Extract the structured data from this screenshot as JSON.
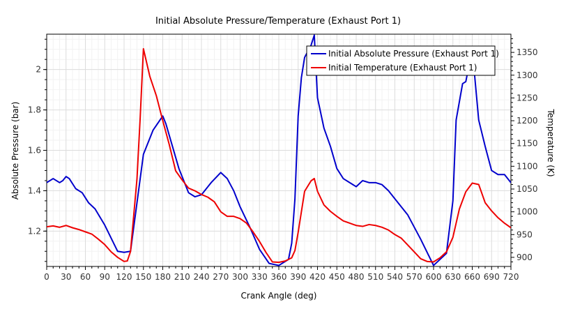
{
  "chart_data": {
    "type": "line",
    "title": "Initial Absolute Pressure/Temperature (Exhaust Port 1)",
    "xlabel": "Crank Angle  (deg)",
    "ylabel_left": "Absolute Pressure  (bar)",
    "ylabel_right": "Temperature  (K)",
    "xlim": [
      0,
      720
    ],
    "ylim_left": [
      1.025,
      2.175
    ],
    "ylim_right": [
      880,
      1390
    ],
    "x_ticks": [
      "0",
      "30",
      "60",
      "90",
      "120",
      "150",
      "180",
      "210",
      "240",
      "270",
      "300",
      "330",
      "360",
      "390",
      "420",
      "450",
      "480",
      "510",
      "540",
      "570",
      "600",
      "630",
      "660",
      "690",
      "720"
    ],
    "x_tick_values": [
      0,
      30,
      60,
      90,
      120,
      150,
      180,
      210,
      240,
      270,
      300,
      330,
      360,
      390,
      420,
      450,
      480,
      510,
      540,
      570,
      600,
      630,
      660,
      690,
      720
    ],
    "y_left_ticks": [
      "1.2",
      "1.4",
      "1.6",
      "1.8",
      "2"
    ],
    "y_left_tick_values": [
      1.2,
      1.4,
      1.6,
      1.8,
      2.0
    ],
    "y_right_ticks": [
      "900",
      "950",
      "1000",
      "1050",
      "1100",
      "1150",
      "1200",
      "1250",
      "1300",
      "1350"
    ],
    "y_right_tick_values": [
      900,
      950,
      1000,
      1050,
      1100,
      1150,
      1200,
      1250,
      1300,
      1350
    ],
    "grid": true,
    "legend_position": "top-right",
    "series": [
      {
        "name": "Initial Absolute Pressure (Exhaust Port 1)",
        "axis": "left",
        "color": "#0000cc",
        "x": [
          0,
          10,
          20,
          25,
          30,
          35,
          45,
          55,
          65,
          75,
          90,
          110,
          120,
          130,
          140,
          150,
          165,
          180,
          185,
          195,
          205,
          210,
          220,
          230,
          240,
          255,
          270,
          280,
          290,
          300,
          315,
          330,
          345,
          360,
          375,
          380,
          385,
          390,
          395,
          400,
          410,
          415,
          420,
          430,
          440,
          450,
          460,
          475,
          480,
          490,
          500,
          510,
          520,
          530,
          540,
          560,
          580,
          600,
          620,
          630,
          635,
          645,
          650,
          660,
          670,
          680,
          690,
          700,
          710,
          720
        ],
        "values": [
          1.44,
          1.46,
          1.44,
          1.45,
          1.47,
          1.46,
          1.41,
          1.39,
          1.34,
          1.31,
          1.23,
          1.1,
          1.095,
          1.1,
          1.34,
          1.58,
          1.7,
          1.77,
          1.73,
          1.62,
          1.51,
          1.47,
          1.39,
          1.37,
          1.38,
          1.44,
          1.49,
          1.46,
          1.4,
          1.32,
          1.22,
          1.11,
          1.04,
          1.03,
          1.06,
          1.14,
          1.36,
          1.77,
          1.96,
          2.06,
          2.12,
          2.17,
          1.86,
          1.71,
          1.62,
          1.51,
          1.46,
          1.43,
          1.42,
          1.45,
          1.44,
          1.44,
          1.43,
          1.4,
          1.36,
          1.28,
          1.16,
          1.03,
          1.09,
          1.35,
          1.75,
          1.93,
          1.94,
          2.1,
          1.75,
          1.62,
          1.5,
          1.48,
          1.48,
          1.44
        ]
      },
      {
        "name": "Initial Temperature (Exhaust Port 1)",
        "axis": "right",
        "color": "#ee0000",
        "x": [
          0,
          10,
          20,
          30,
          40,
          50,
          60,
          70,
          80,
          90,
          100,
          110,
          120,
          125,
          130,
          140,
          145,
          150,
          160,
          170,
          180,
          190,
          200,
          210,
          220,
          230,
          240,
          250,
          260,
          270,
          280,
          290,
          300,
          310,
          320,
          330,
          340,
          350,
          360,
          370,
          380,
          385,
          390,
          400,
          410,
          415,
          420,
          430,
          440,
          450,
          460,
          470,
          480,
          490,
          500,
          510,
          520,
          530,
          540,
          550,
          560,
          570,
          580,
          590,
          600,
          610,
          620,
          630,
          640,
          650,
          660,
          670,
          680,
          690,
          700,
          710,
          720
        ],
        "values": [
          967,
          969,
          966,
          970,
          965,
          961,
          956,
          951,
          940,
          928,
          912,
          900,
          891,
          892,
          913,
          1072,
          1207,
          1358,
          1297,
          1255,
          1200,
          1148,
          1090,
          1070,
          1052,
          1046,
          1038,
          1032,
          1022,
          1000,
          990,
          990,
          985,
          975,
          956,
          935,
          911,
          890,
          889,
          892,
          899,
          915,
          955,
          1045,
          1068,
          1073,
          1045,
          1015,
          1001,
          990,
          980,
          975,
          970,
          968,
          972,
          970,
          966,
          960,
          950,
          942,
          927,
          912,
          897,
          891,
          890,
          899,
          912,
          944,
          1006,
          1044,
          1063,
          1060,
          1020,
          1002,
          987,
          975,
          965
        ]
      }
    ]
  }
}
